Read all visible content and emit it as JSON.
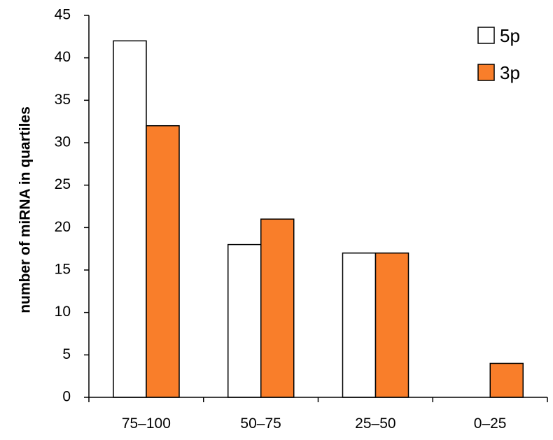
{
  "chart_data": {
    "type": "bar",
    "categories": [
      "75–100",
      "50–75",
      "25–50",
      "0–25"
    ],
    "series": [
      {
        "name": "5p",
        "values": [
          42,
          18,
          17,
          0
        ],
        "color": "#ffffff"
      },
      {
        "name": "3p",
        "values": [
          32,
          21,
          17,
          4
        ],
        "color": "#f97e2a"
      }
    ],
    "ylabel": "number of miRNA in quartiles",
    "xlabel": "",
    "ylim": [
      0,
      45
    ],
    "yticks": [
      0,
      5,
      10,
      15,
      20,
      25,
      30,
      35,
      40,
      45
    ],
    "grid": false,
    "legend": "top-right",
    "bar_stroke": "#000000"
  }
}
